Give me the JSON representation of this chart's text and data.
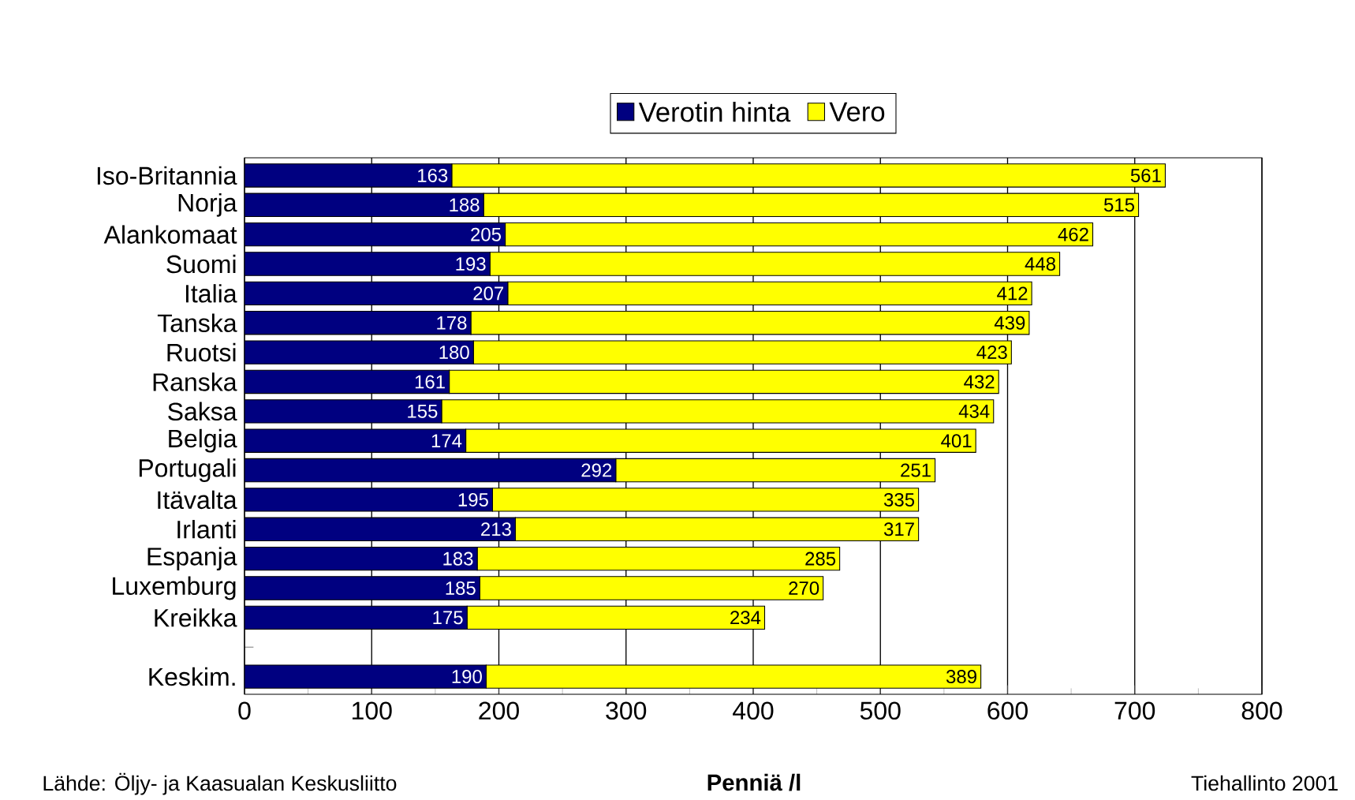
{
  "chart_data": {
    "type": "bar",
    "orientation": "horizontal",
    "stacked": true,
    "xlabel": "Penniä /l",
    "categories": [
      "Iso-Britannia",
      "Norja",
      "Alankomaat",
      "Suomi",
      "Italia",
      "Tanska",
      "Ruotsi",
      "Ranska",
      "Saksa",
      "Belgia",
      "Portugali",
      "Itävalta",
      "Irlanti",
      "Espanja",
      "Luxemburg",
      "Kreikka",
      null,
      "Keskim."
    ],
    "series": [
      {
        "name": "Verotin hinta",
        "color": "#000080",
        "values": [
          163,
          188,
          205,
          193,
          207,
          178,
          180,
          161,
          155,
          174,
          292,
          195,
          213,
          183,
          185,
          175,
          null,
          190
        ]
      },
      {
        "name": "Vero",
        "color": "#ffff00",
        "values": [
          561,
          515,
          462,
          448,
          412,
          439,
          423,
          432,
          434,
          401,
          251,
          335,
          317,
          285,
          270,
          234,
          null,
          389
        ]
      }
    ],
    "xlim": [
      0,
      800
    ],
    "xticks": [
      0,
      100,
      200,
      300,
      400,
      500,
      600,
      700,
      800
    ],
    "grid": "x",
    "legend": "top",
    "data_labels": true,
    "annotations": [
      "Lähde: Öljy- ja Kaasualan Keskusliitto",
      "Tiehallinto 2001"
    ]
  }
}
